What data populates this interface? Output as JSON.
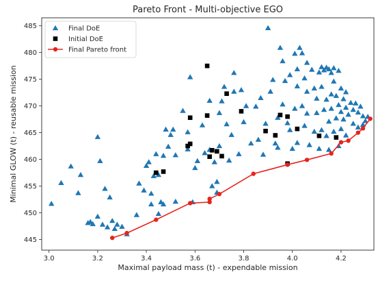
{
  "chart_data": {
    "type": "scatter",
    "title": "Pareto Front - Multi-objective EGO",
    "xlabel": "Maximal payload mass (t) - expendable mission",
    "ylabel": "Minimal GLOW (t) - reusable mission",
    "xlim": [
      2.97,
      4.335
    ],
    "ylim": [
      443.0,
      486.5
    ],
    "xticks": [
      "3.0",
      "3.2",
      "3.4",
      "3.6",
      "3.8",
      "4.0",
      "4.2"
    ],
    "yticks": [
      "445",
      "450",
      "455",
      "460",
      "465",
      "470",
      "475",
      "480",
      "485"
    ],
    "grid": false,
    "legend_position": "top-left",
    "series": [
      {
        "name": "Final DoE",
        "marker": "triangle",
        "color": "#1f77b4",
        "points": [
          [
            3.01,
            451.7
          ],
          [
            3.05,
            455.6
          ],
          [
            3.09,
            458.7
          ],
          [
            3.12,
            453.7
          ],
          [
            3.13,
            457.1
          ],
          [
            3.16,
            448.1
          ],
          [
            3.17,
            448.3
          ],
          [
            3.18,
            447.9
          ],
          [
            3.2,
            449.3
          ],
          [
            3.2,
            464.2
          ],
          [
            3.21,
            459.7
          ],
          [
            3.22,
            447.8
          ],
          [
            3.23,
            454.5
          ],
          [
            3.24,
            447.3
          ],
          [
            3.25,
            452.9
          ],
          [
            3.26,
            448.5
          ],
          [
            3.27,
            447.0
          ],
          [
            3.28,
            447.8
          ],
          [
            3.3,
            447.4
          ],
          [
            3.32,
            446.0
          ],
          [
            3.36,
            449.6
          ],
          [
            3.37,
            455.5
          ],
          [
            3.39,
            454.2
          ],
          [
            3.4,
            458.8
          ],
          [
            3.41,
            459.5
          ],
          [
            3.42,
            451.6
          ],
          [
            3.42,
            453.6
          ],
          [
            3.43,
            456.9
          ],
          [
            3.44,
            461.0
          ],
          [
            3.45,
            457.1
          ],
          [
            3.45,
            449.8
          ],
          [
            3.46,
            452.0
          ],
          [
            3.47,
            451.6
          ],
          [
            3.47,
            460.7
          ],
          [
            3.48,
            465.6
          ],
          [
            3.49,
            462.4
          ],
          [
            3.5,
            464.6
          ],
          [
            3.51,
            465.6
          ],
          [
            3.52,
            452.1
          ],
          [
            3.52,
            460.8
          ],
          [
            3.55,
            469.1
          ],
          [
            3.57,
            465.1
          ],
          [
            3.57,
            461.9
          ],
          [
            3.58,
            475.4
          ],
          [
            3.59,
            452.0
          ],
          [
            3.6,
            458.4
          ],
          [
            3.61,
            459.7
          ],
          [
            3.63,
            466.4
          ],
          [
            3.64,
            461.2
          ],
          [
            3.66,
            471.0
          ],
          [
            3.66,
            461.8
          ],
          [
            3.67,
            455.0
          ],
          [
            3.68,
            459.5
          ],
          [
            3.69,
            453.8
          ],
          [
            3.69,
            455.8
          ],
          [
            3.7,
            468.7
          ],
          [
            3.7,
            462.5
          ],
          [
            3.71,
            470.9
          ],
          [
            3.72,
            473.6
          ],
          [
            3.73,
            466.6
          ],
          [
            3.74,
            459.8
          ],
          [
            3.75,
            464.6
          ],
          [
            3.76,
            476.2
          ],
          [
            3.76,
            472.7
          ],
          [
            3.78,
            461.0
          ],
          [
            3.79,
            473.0
          ],
          [
            3.8,
            467.0
          ],
          [
            3.81,
            470.0
          ],
          [
            3.83,
            463.0
          ],
          [
            3.85,
            469.9
          ],
          [
            3.86,
            463.7
          ],
          [
            3.87,
            471.5
          ],
          [
            3.88,
            460.9
          ],
          [
            3.89,
            466.7
          ],
          [
            3.9,
            484.6
          ],
          [
            3.91,
            472.7
          ],
          [
            3.92,
            474.9
          ],
          [
            3.93,
            463.0
          ],
          [
            3.94,
            467.8
          ],
          [
            3.94,
            462.2
          ],
          [
            3.95,
            480.9
          ],
          [
            3.96,
            478.4
          ],
          [
            3.96,
            470.3
          ],
          [
            3.97,
            474.7
          ],
          [
            3.98,
            466.8
          ],
          [
            3.99,
            475.8
          ],
          [
            3.99,
            465.5
          ],
          [
            4.0,
            462.0
          ],
          [
            4.01,
            479.8
          ],
          [
            4.01,
            469.5
          ],
          [
            4.02,
            476.9
          ],
          [
            4.02,
            473.7
          ],
          [
            4.02,
            463.1
          ],
          [
            4.03,
            480.9
          ],
          [
            4.04,
            479.9
          ],
          [
            4.04,
            470.0
          ],
          [
            4.05,
            475.2
          ],
          [
            4.05,
            466.3
          ],
          [
            4.06,
            478.1
          ],
          [
            4.06,
            472.7
          ],
          [
            4.06,
            468.6
          ],
          [
            4.07,
            462.7
          ],
          [
            4.08,
            476.8
          ],
          [
            4.09,
            473.3
          ],
          [
            4.09,
            465.2
          ],
          [
            4.1,
            471.4
          ],
          [
            4.1,
            468.7
          ],
          [
            4.11,
            476.3
          ],
          [
            4.11,
            462.0
          ],
          [
            4.12,
            477.3
          ],
          [
            4.12,
            473.6
          ],
          [
            4.12,
            465.5
          ],
          [
            4.13,
            476.7
          ],
          [
            4.13,
            469.3
          ],
          [
            4.14,
            477.2
          ],
          [
            4.14,
            471.2
          ],
          [
            4.14,
            464.4
          ],
          [
            4.15,
            476.9
          ],
          [
            4.15,
            467.1
          ],
          [
            4.15,
            461.8
          ],
          [
            4.16,
            476.2
          ],
          [
            4.16,
            472.2
          ],
          [
            4.16,
            469.5
          ],
          [
            4.17,
            477.1
          ],
          [
            4.17,
            474.6
          ],
          [
            4.17,
            465.2
          ],
          [
            4.18,
            471.9
          ],
          [
            4.18,
            467.7
          ],
          [
            4.19,
            476.6
          ],
          [
            4.19,
            470.2
          ],
          [
            4.19,
            462.5
          ],
          [
            4.2,
            473.3
          ],
          [
            4.2,
            468.9
          ],
          [
            4.2,
            465.7
          ],
          [
            4.21,
            471.3
          ],
          [
            4.21,
            467.5
          ],
          [
            4.22,
            472.6
          ],
          [
            4.22,
            469.7
          ],
          [
            4.22,
            464.5
          ],
          [
            4.23,
            468.4
          ],
          [
            4.24,
            470.6
          ],
          [
            4.25,
            466.7
          ],
          [
            4.25,
            469.3
          ],
          [
            4.26,
            470.5
          ],
          [
            4.27,
            468.8
          ],
          [
            4.27,
            466.0
          ],
          [
            4.28,
            469.9
          ],
          [
            4.29,
            468.1
          ],
          [
            4.29,
            466.5
          ],
          [
            4.3,
            467.2
          ],
          [
            4.31,
            468.0
          ]
        ]
      },
      {
        "name": "Initial DoE",
        "marker": "square",
        "color": "#000000",
        "points": [
          [
            3.44,
            457.5
          ],
          [
            3.47,
            457.7
          ],
          [
            3.57,
            462.5
          ],
          [
            3.58,
            462.9
          ],
          [
            3.58,
            467.8
          ],
          [
            3.65,
            477.5
          ],
          [
            3.65,
            468.2
          ],
          [
            3.66,
            460.5
          ],
          [
            3.67,
            461.7
          ],
          [
            3.69,
            461.5
          ],
          [
            3.71,
            460.6
          ],
          [
            3.73,
            472.3
          ],
          [
            3.79,
            469.0
          ],
          [
            3.89,
            465.3
          ],
          [
            3.93,
            464.5
          ],
          [
            3.95,
            468.3
          ],
          [
            3.98,
            468.0
          ],
          [
            3.98,
            459.2
          ],
          [
            4.02,
            465.7
          ],
          [
            4.11,
            464.4
          ],
          [
            4.18,
            464.1
          ]
        ]
      },
      {
        "name": "Final Pareto front",
        "marker": "circle",
        "color": "#e8231d",
        "line": true,
        "points": [
          [
            3.26,
            445.3
          ],
          [
            3.32,
            446.2
          ],
          [
            3.44,
            448.7
          ],
          [
            3.58,
            451.8
          ],
          [
            3.66,
            452.0
          ],
          [
            3.66,
            452.6
          ],
          [
            3.7,
            453.5
          ],
          [
            3.84,
            457.3
          ],
          [
            3.98,
            459.0
          ],
          [
            4.06,
            459.9
          ],
          [
            4.16,
            461.1
          ],
          [
            4.2,
            463.2
          ],
          [
            4.23,
            463.5
          ],
          [
            4.27,
            465.0
          ],
          [
            4.29,
            465.8
          ],
          [
            4.32,
            467.6
          ]
        ]
      }
    ]
  }
}
